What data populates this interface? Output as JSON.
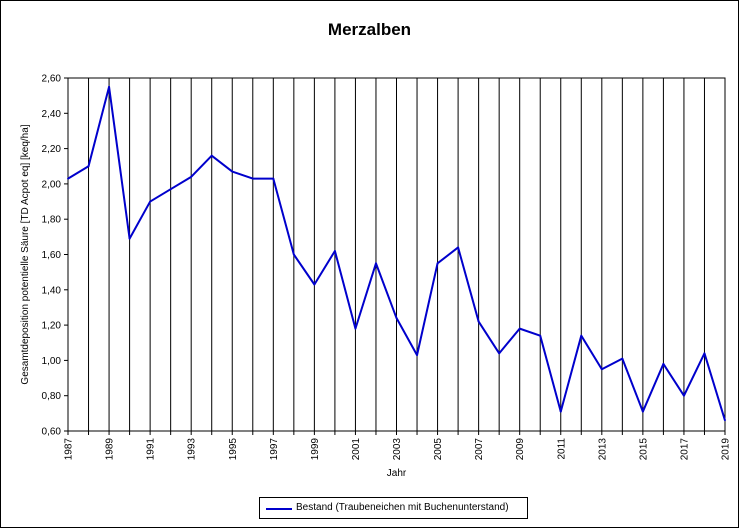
{
  "chart_data": {
    "type": "line",
    "title": "Merzalben",
    "xlabel": "Jahr",
    "ylabel": "Gesamtdeposition potentielle Säure [TD Acpot eq] [keq/ha]",
    "ylim": [
      0.6,
      2.6
    ],
    "yticks": [
      "0,60",
      "0,80",
      "1,00",
      "1,20",
      "1,40",
      "1,60",
      "1,80",
      "2,00",
      "2,20",
      "2,40",
      "2,60"
    ],
    "xtick_labels": [
      "1987",
      "1989",
      "1991",
      "1993",
      "1995",
      "1997",
      "1999",
      "2001",
      "2003",
      "2005",
      "2007",
      "2009",
      "2011",
      "2013",
      "2015",
      "2017",
      "2019"
    ],
    "grid": "vertical",
    "legend_position": "bottom",
    "x": [
      1987,
      1988,
      1989,
      1990,
      1991,
      1992,
      1993,
      1994,
      1995,
      1996,
      1997,
      1998,
      1999,
      2000,
      2001,
      2002,
      2003,
      2004,
      2005,
      2006,
      2007,
      2008,
      2009,
      2010,
      2011,
      2012,
      2013,
      2014,
      2015,
      2016,
      2017,
      2018,
      2019
    ],
    "series": [
      {
        "name": "Bestand (Traubeneichen mit Buchenunterstand)",
        "color": "#0000cc",
        "values": [
          2.03,
          2.1,
          2.55,
          1.69,
          1.9,
          1.97,
          2.04,
          2.16,
          2.07,
          2.03,
          2.03,
          1.6,
          1.43,
          1.62,
          1.18,
          1.55,
          1.24,
          1.03,
          1.55,
          1.64,
          1.22,
          1.04,
          1.18,
          1.14,
          0.71,
          1.14,
          0.95,
          1.01,
          0.71,
          0.98,
          0.8,
          1.04,
          0.66
        ]
      }
    ]
  }
}
